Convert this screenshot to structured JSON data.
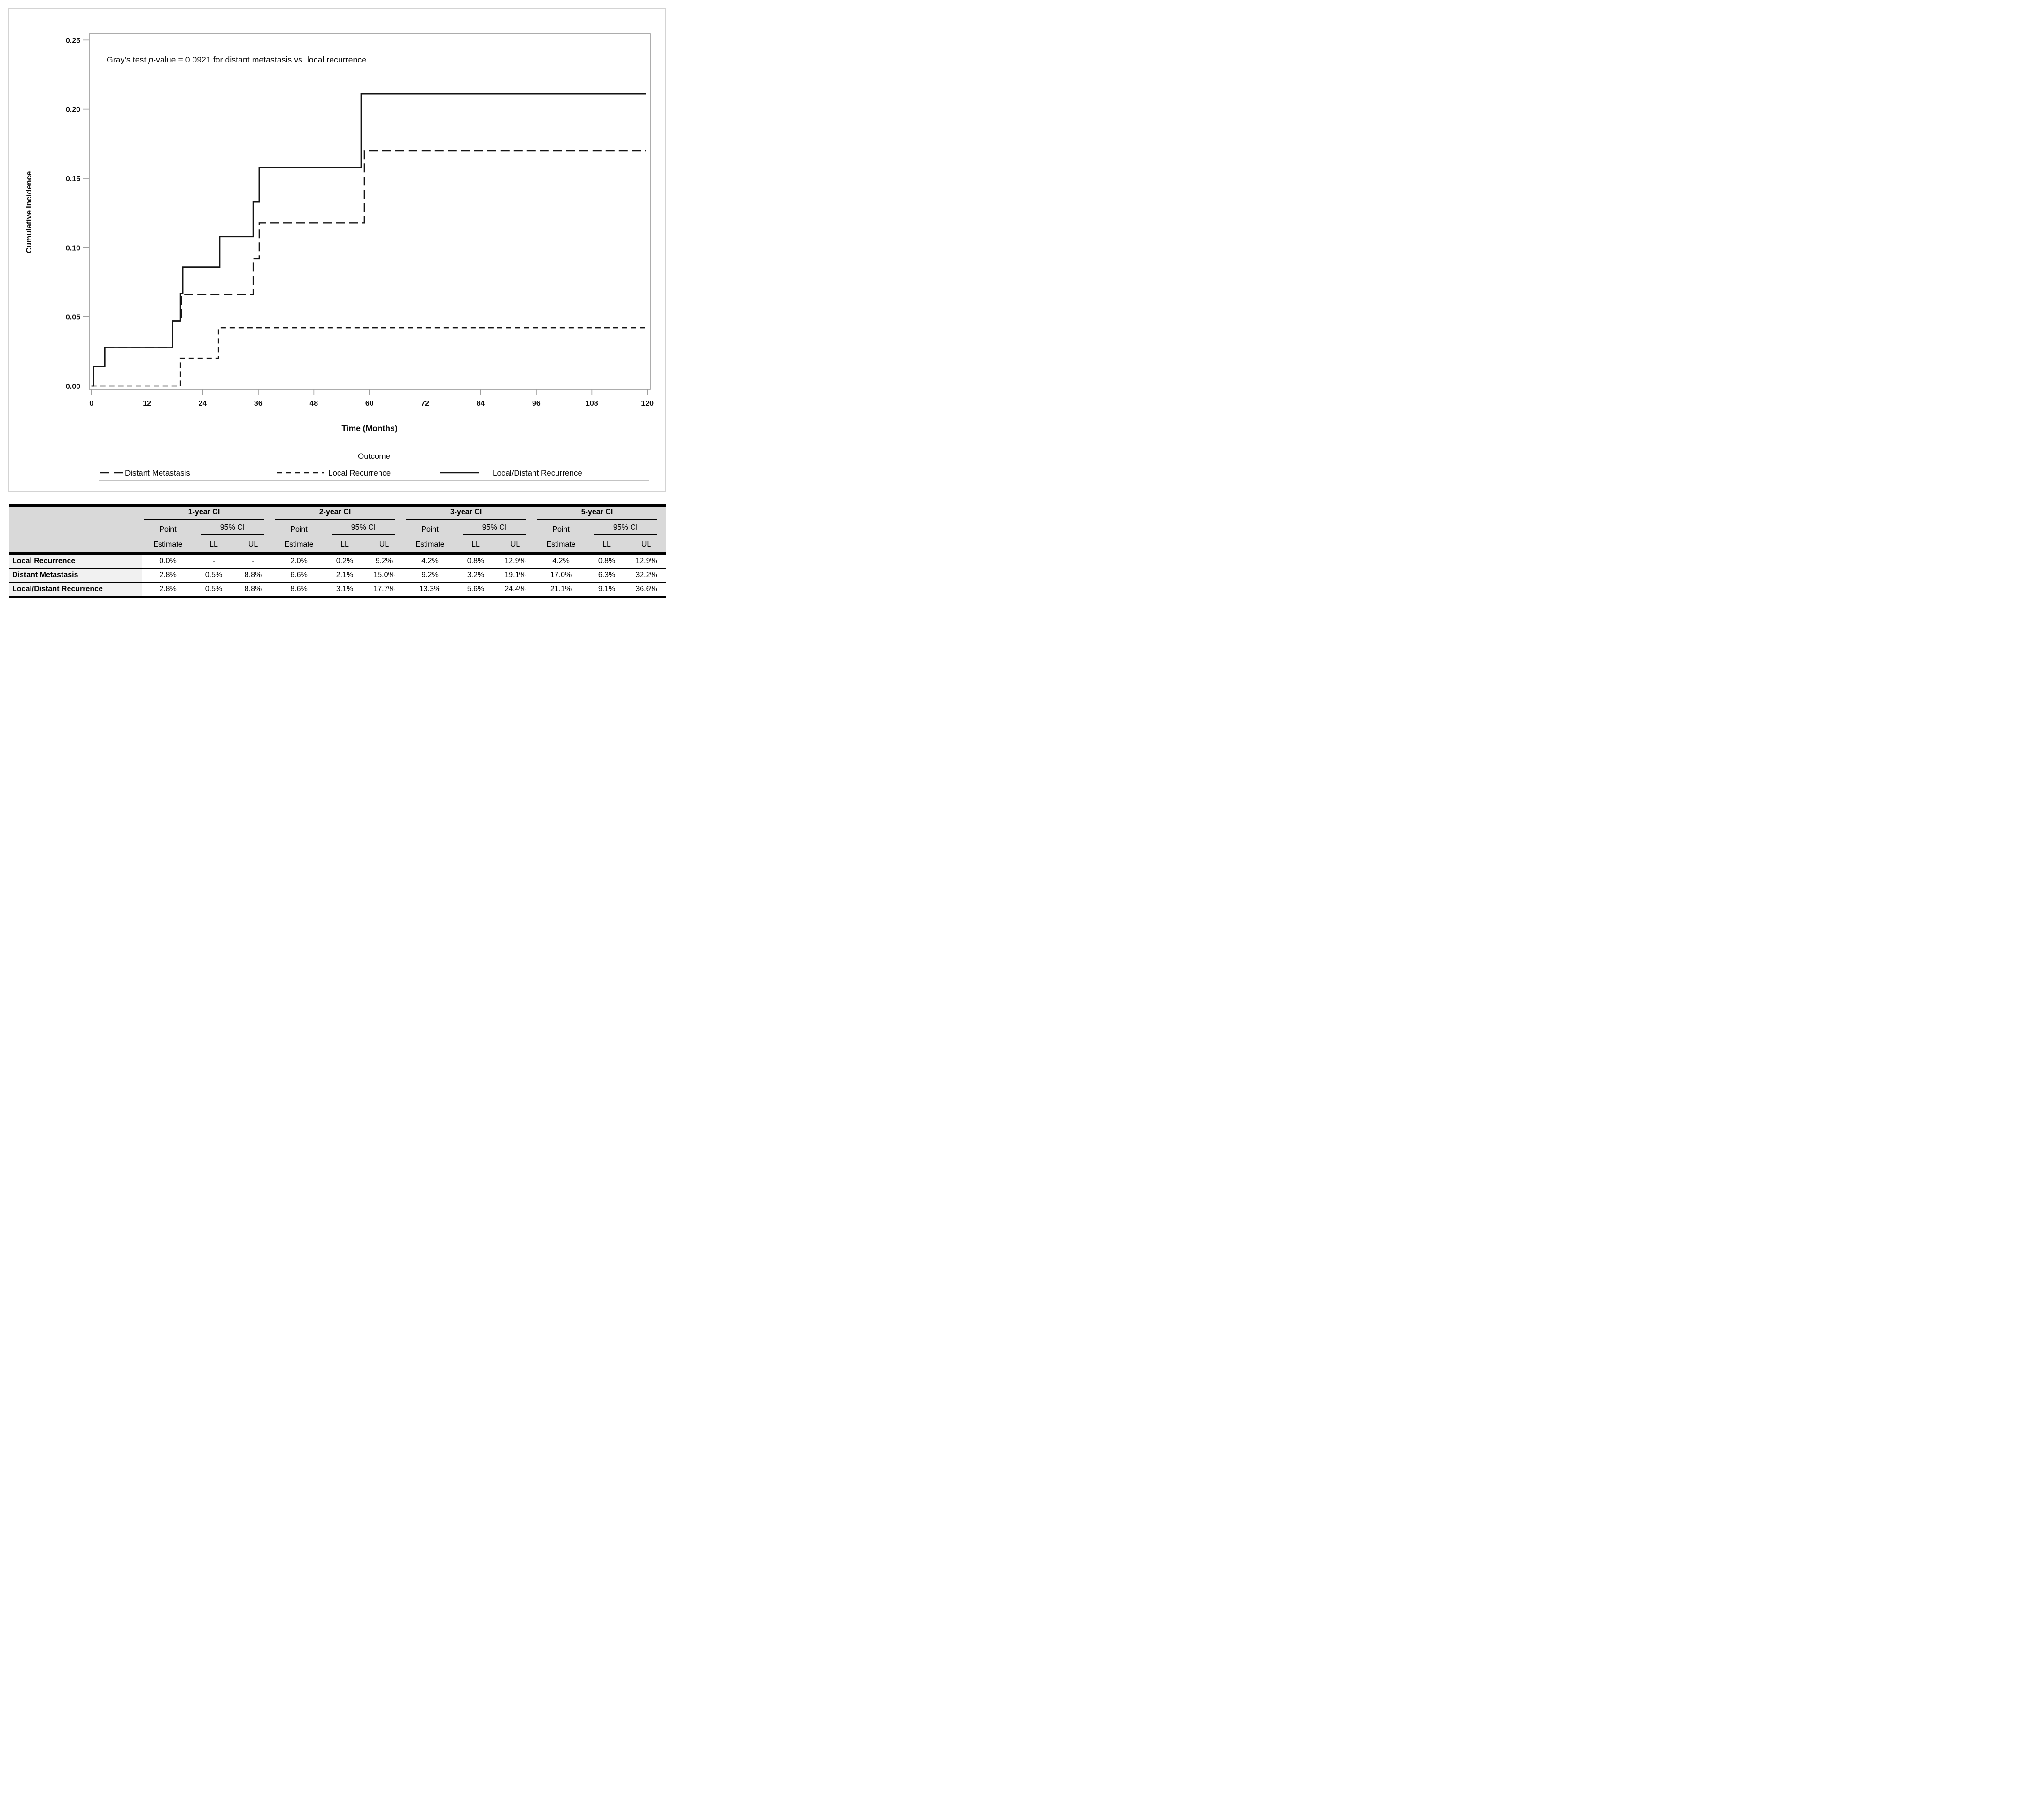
{
  "chart_data": {
    "type": "line",
    "subtype": "step-cumulative-incidence",
    "annotation": {
      "prefix": "Gray’s test ",
      "italic": "p",
      "suffix": "-value = 0.0921 for distant metastasis vs. local recurrence"
    },
    "xlabel": "Time (Months)",
    "ylabel": "Cumulative Incidence",
    "xlim": [
      0,
      120
    ],
    "ylim": [
      0,
      0.25
    ],
    "x_ticks": [
      0,
      12,
      24,
      36,
      48,
      60,
      72,
      84,
      96,
      108,
      120
    ],
    "x_tick_labels": [
      "0",
      "12",
      "24",
      "36",
      "48",
      "60",
      "72",
      "84",
      "96",
      "108",
      "120"
    ],
    "y_ticks": [
      0,
      0.05,
      0.1,
      0.15,
      0.2,
      0.25
    ],
    "y_tick_labels": [
      "0.00",
      "0.05",
      "0.10",
      "0.15",
      "0.20",
      "0.25"
    ],
    "grid": "off",
    "legend_position": "bottom-boxed",
    "legend_title": "Outcome",
    "series": [
      {
        "name": "Distant Metastasis",
        "line_style": "long-dash",
        "steps": [
          [
            0,
            0
          ],
          [
            0.5,
            0.014
          ],
          [
            2.9,
            0.028
          ],
          [
            17.5,
            0.047
          ],
          [
            19.4,
            0.066
          ],
          [
            34.9,
            0.092
          ],
          [
            36.2,
            0.118
          ],
          [
            58.9,
            0.17
          ]
        ],
        "end_month": 119.7
      },
      {
        "name": "Local Recurrence",
        "line_style": "short-dash",
        "steps": [
          [
            0,
            0
          ],
          [
            19.2,
            0.02
          ],
          [
            27.4,
            0.042
          ]
        ],
        "end_month": 119.7
      },
      {
        "name": "Local/Distant Recurrence",
        "line_style": "solid",
        "steps": [
          [
            0,
            0
          ],
          [
            0.5,
            0.014
          ],
          [
            2.9,
            0.028
          ],
          [
            17.5,
            0.047
          ],
          [
            19.2,
            0.067
          ],
          [
            19.7,
            0.086
          ],
          [
            27.7,
            0.108
          ],
          [
            34.9,
            0.133
          ],
          [
            36.2,
            0.158
          ],
          [
            58.2,
            0.211
          ]
        ],
        "end_month": 119.7
      }
    ],
    "line_color": "#141414"
  },
  "table": {
    "groups": [
      {
        "label": "1-year CI"
      },
      {
        "label": "2-year CI"
      },
      {
        "label": "3-year CI"
      },
      {
        "label": "5-year CI"
      }
    ],
    "subheaders": {
      "point_top": "Point",
      "point_bottom": "Estimate",
      "ci": "95% CI",
      "ll": "LL",
      "ul": "UL"
    },
    "rows": [
      {
        "label": "Local Recurrence",
        "values": [
          [
            "0.0%",
            "-",
            "-"
          ],
          [
            "2.0%",
            "0.2%",
            "9.2%"
          ],
          [
            "4.2%",
            "0.8%",
            "12.9%"
          ],
          [
            "4.2%",
            "0.8%",
            "12.9%"
          ]
        ]
      },
      {
        "label": "Distant Metastasis",
        "values": [
          [
            "2.8%",
            "0.5%",
            "8.8%"
          ],
          [
            "6.6%",
            "2.1%",
            "15.0%"
          ],
          [
            "9.2%",
            "3.2%",
            "19.1%"
          ],
          [
            "17.0%",
            "6.3%",
            "32.2%"
          ]
        ]
      },
      {
        "label": "Local/Distant Recurrence",
        "values": [
          [
            "2.8%",
            "0.5%",
            "8.8%"
          ],
          [
            "8.6%",
            "3.1%",
            "17.7%"
          ],
          [
            "13.3%",
            "5.6%",
            "24.4%"
          ],
          [
            "21.1%",
            "9.1%",
            "36.6%"
          ]
        ]
      }
    ]
  },
  "colors": {
    "line": "#141414",
    "axis_frame": "#9e9e9e",
    "figure_border": "#d3d3d3",
    "header_bg": "#d9d9d9",
    "rowlabel_bg": "#f1f1f1"
  }
}
